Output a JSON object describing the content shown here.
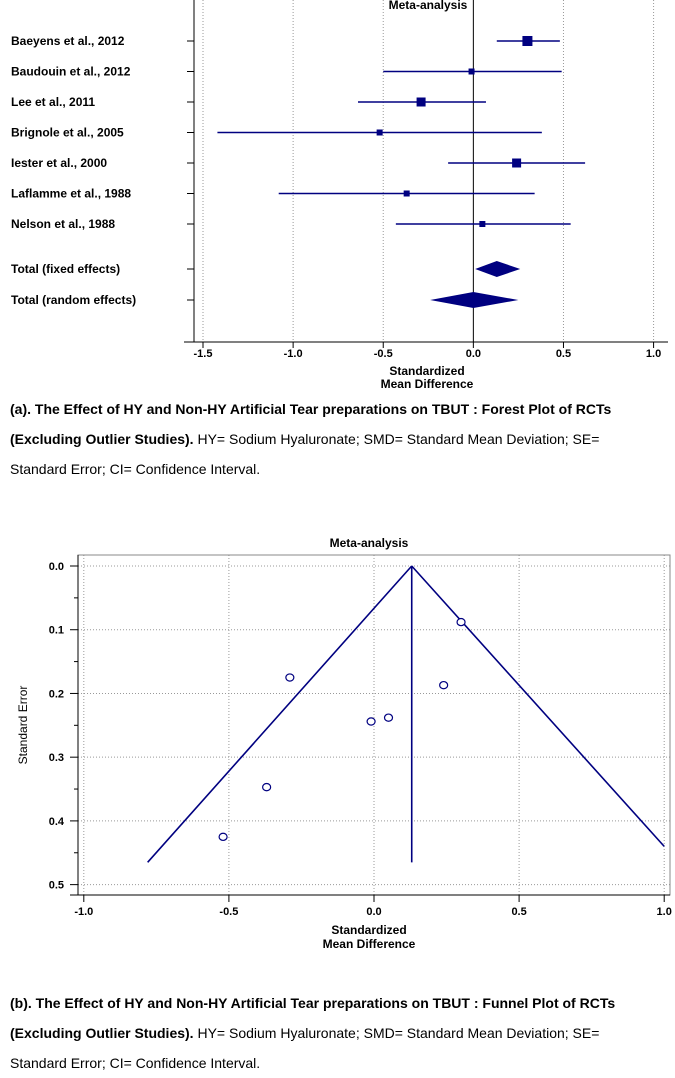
{
  "chart_data": [
    {
      "type": "forest",
      "title": "Meta-analysis",
      "xlabel_line1": "Standardized",
      "xlabel_line2": "Mean Difference",
      "xlim": [
        -1.55,
        1.08
      ],
      "xticks": [
        "-1.5",
        "-1.0",
        "-0.5",
        "0.0",
        "0.5",
        "1.0"
      ],
      "xtick_values": [
        -1.5,
        -1.0,
        -0.5,
        0.0,
        0.5,
        1.0
      ],
      "marker_color": "#000080",
      "studies": [
        {
          "label": "Baeyens et al., 2012",
          "smd": 0.3,
          "ci_low": 0.13,
          "ci_high": 0.48
        },
        {
          "label": "Baudouin et al., 2012",
          "smd": -0.01,
          "ci_low": -0.5,
          "ci_high": 0.49
        },
        {
          "label": "Lee et al., 2011",
          "smd": -0.29,
          "ci_low": -0.64,
          "ci_high": 0.07
        },
        {
          "label": "Brignole et al., 2005",
          "smd": -0.52,
          "ci_low": -1.42,
          "ci_high": 0.38
        },
        {
          "label": "Iester et al., 2000",
          "smd": 0.24,
          "ci_low": -0.14,
          "ci_high": 0.62
        },
        {
          "label": "Laflamme et al., 1988",
          "smd": -0.37,
          "ci_low": -1.08,
          "ci_high": 0.34
        },
        {
          "label": "Nelson et al., 1988",
          "smd": 0.05,
          "ci_low": -0.43,
          "ci_high": 0.54
        }
      ],
      "totals": [
        {
          "label": "Total (fixed effects)",
          "smd": 0.13,
          "ci_low": 0.01,
          "ci_high": 0.26
        },
        {
          "label": "Total (random effects)",
          "smd": 0.0,
          "ci_low": -0.24,
          "ci_high": 0.25
        }
      ]
    },
    {
      "type": "scatter",
      "subtype": "funnel",
      "title": "Meta-analysis",
      "xlabel_line1": "Standardized",
      "xlabel_line2": "Mean Difference",
      "ylabel": "Standard Error",
      "xlim": [
        -1.02,
        1.02
      ],
      "ylim": [
        0.0,
        0.51
      ],
      "y_inverted": true,
      "xticks": [
        "-1.0",
        "-0.5",
        "0.0",
        "0.5",
        "1.0"
      ],
      "xtick_values": [
        -1.0,
        -0.5,
        0.0,
        0.5,
        1.0
      ],
      "yticks": [
        "0.0",
        "0.1",
        "0.2",
        "0.3",
        "0.4",
        "0.5"
      ],
      "ytick_values": [
        0.0,
        0.1,
        0.2,
        0.3,
        0.4,
        0.5
      ],
      "line_color": "#000080",
      "summary_x": 0.13,
      "funnel_left": [
        -0.78,
        0.465
      ],
      "funnel_right": [
        1.0,
        0.44
      ],
      "vertical_bottom": 0.465,
      "points": [
        {
          "x": 0.3,
          "y": 0.088
        },
        {
          "x": -0.29,
          "y": 0.175
        },
        {
          "x": 0.24,
          "y": 0.187
        },
        {
          "x": -0.01,
          "y": 0.244
        },
        {
          "x": 0.05,
          "y": 0.238
        },
        {
          "x": -0.37,
          "y": 0.347
        },
        {
          "x": -0.52,
          "y": 0.425
        }
      ]
    }
  ],
  "captions": {
    "a_bold": "(a). The Effect of HY and Non-HY Artificial Tear preparations on TBUT : Forest Plot of RCTs (Excluding Outlier Studies).",
    "a_rest": " HY= Sodium Hyaluronate; SMD= Standard Mean Deviation; SE= Standard Error; CI= Confidence Interval.",
    "b_bold": "(b). The Effect of HY and Non-HY Artificial Tear preparations on TBUT : Funnel Plot of RCTs (Excluding Outlier Studies).",
    "b_rest": " HY= Sodium Hyaluronate; SMD= Standard Mean Deviation; SE= Standard Error; CI= Confidence Interval."
  }
}
